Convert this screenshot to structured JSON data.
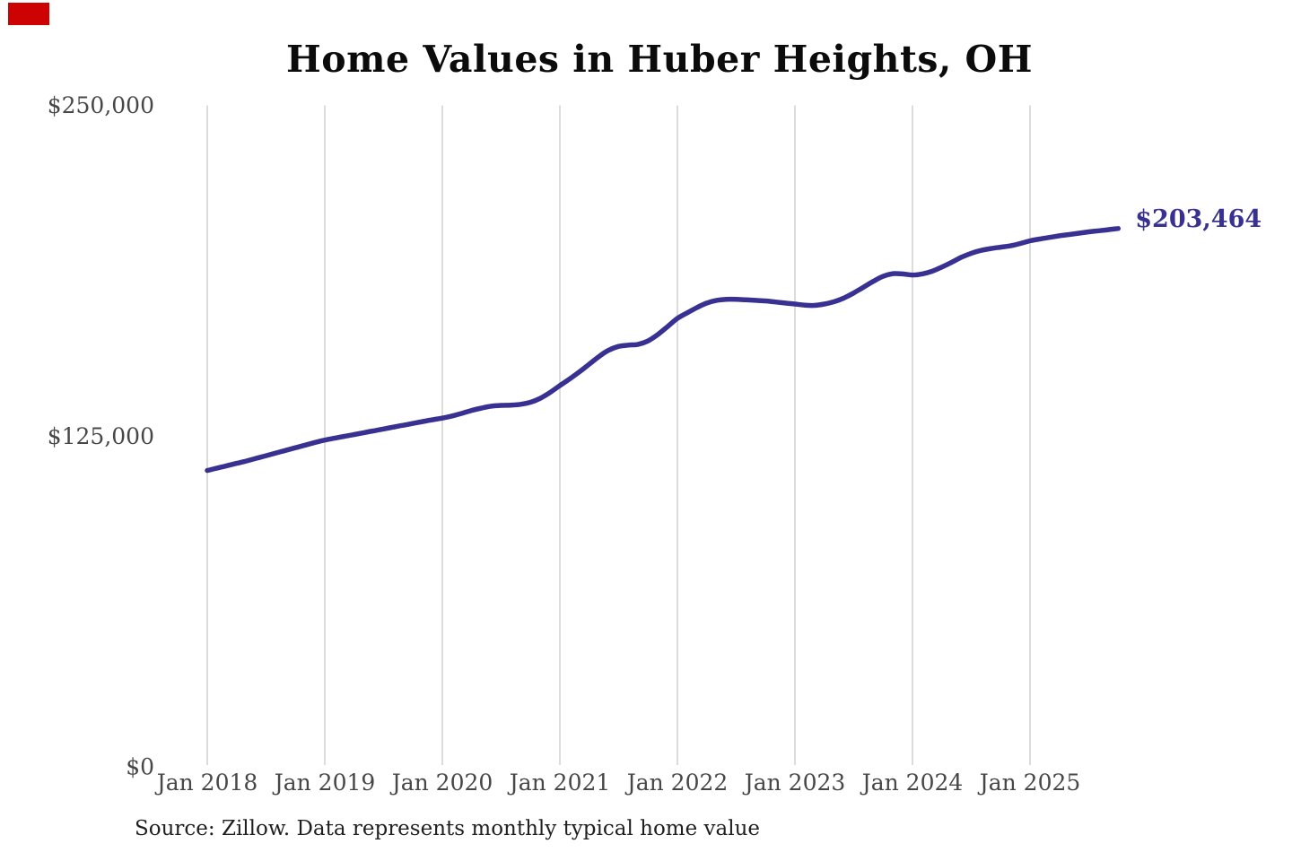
{
  "marker": {
    "color": "#cc0302"
  },
  "header": {
    "title": "Home Values in Huber Heights, OH"
  },
  "chart_data": {
    "type": "line",
    "title": "Home Values in Huber Heights, OH",
    "xlabel": "",
    "ylabel": "",
    "ylim": [
      0,
      250000
    ],
    "y_ticks": [
      250000,
      125000,
      0
    ],
    "y_tick_labels": [
      "$250,000",
      "$125,000",
      "$0"
    ],
    "x_tick_labels": [
      "Jan 2018",
      "Jan 2019",
      "Jan 2020",
      "Jan 2021",
      "Jan 2022",
      "Jan 2023",
      "Jan 2024",
      "Jan 2025"
    ],
    "grid": "vertical-only",
    "gridline_color": "#c9c9c9",
    "axis_label_color": "#474747",
    "end_label": "$203,464",
    "end_value": 203464,
    "series": [
      {
        "name": "Typical home value",
        "color": "#383192",
        "frequency": "monthly",
        "x_start": "Jan 2018",
        "x_end": "Oct 2025",
        "values": [
          112000,
          112900,
          113800,
          114700,
          115600,
          116600,
          117600,
          118600,
          119600,
          120600,
          121600,
          122600,
          123500,
          124200,
          124900,
          125600,
          126300,
          127000,
          127700,
          128400,
          129100,
          129800,
          130500,
          131200,
          131800,
          132600,
          133600,
          134700,
          135600,
          136300,
          136600,
          136700,
          137000,
          137800,
          139300,
          141500,
          144100,
          146600,
          149300,
          152200,
          155100,
          157500,
          158900,
          159400,
          159700,
          161000,
          163400,
          166400,
          169500,
          171600,
          173600,
          175300,
          176300,
          176700,
          176700,
          176500,
          176300,
          176100,
          175700,
          175300,
          174900,
          174500,
          174400,
          174900,
          175800,
          177200,
          179100,
          181300,
          183500,
          185400,
          186400,
          186300,
          185900,
          186300,
          187300,
          188900,
          190700,
          192600,
          194100,
          195200,
          195900,
          196400,
          196900,
          197800,
          198800,
          199500,
          200100,
          200700,
          201200,
          201700,
          202200,
          202600,
          203000,
          203464
        ]
      }
    ]
  },
  "footer": {
    "source": "Source: Zillow. Data represents monthly typical home value"
  }
}
